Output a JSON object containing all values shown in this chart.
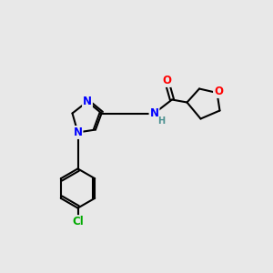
{
  "background_color": "#e8e8e8",
  "bond_color": "#000000",
  "atom_colors": {
    "N": "#0000ff",
    "O": "#ff0000",
    "Cl": "#00aa00",
    "H": "#4a9090",
    "C": "#000000"
  },
  "line_width": 1.5,
  "font_size": 8.5,
  "font_size_H": 7.0
}
